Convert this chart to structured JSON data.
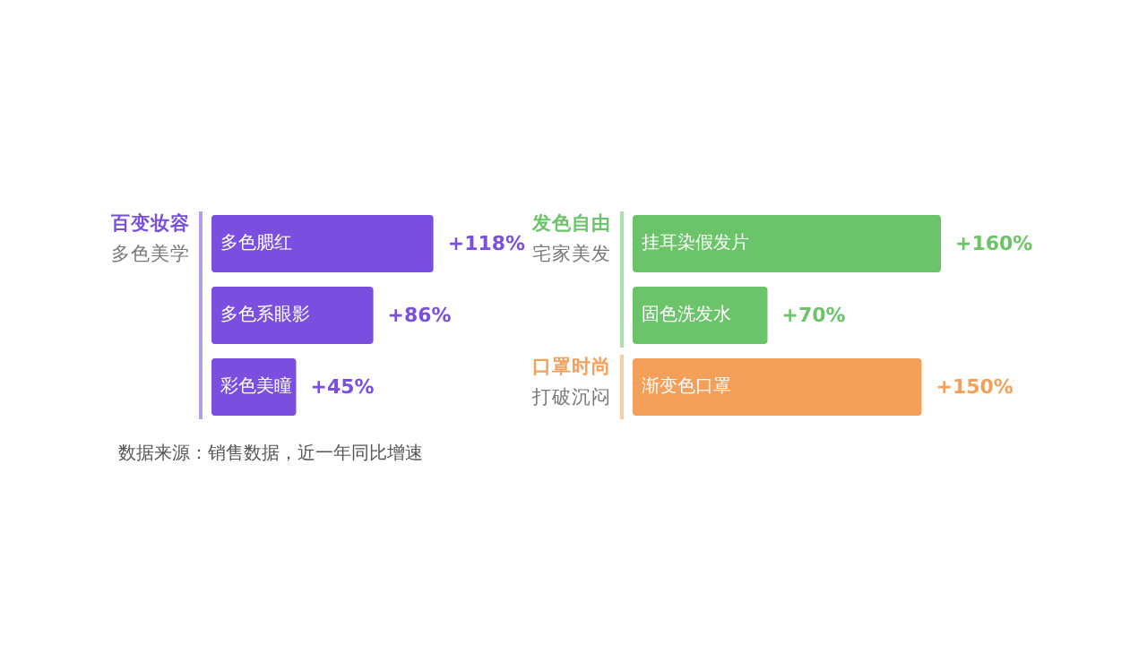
{
  "chart_data": [
    {
      "type": "bar",
      "orientation": "horizontal",
      "categories": [
        "多色腮红",
        "多色系眼影",
        "彩色美瞳"
      ],
      "values": [
        118,
        86,
        45
      ],
      "value_labels": [
        "+118%",
        "+86%",
        "+45%"
      ],
      "color": "#7a4fe0",
      "annotations": [
        "百变妆容",
        "多色美学",
        "数据来源：销售数据，近一年同比增速"
      ]
    },
    {
      "type": "bar",
      "orientation": "horizontal",
      "categories": [
        "挂耳染假发片",
        "固色洗发水",
        "渐变色口罩"
      ],
      "values": [
        160,
        70,
        150
      ],
      "value_labels": [
        "+160%",
        "+70%",
        "+150%"
      ],
      "colors": [
        "#6cc46a",
        "#6cc46a",
        "#f5a05a"
      ],
      "annotations": [
        "发色自由",
        "宅家美发",
        "口罩时尚",
        "打破沉闷"
      ]
    }
  ]
}
